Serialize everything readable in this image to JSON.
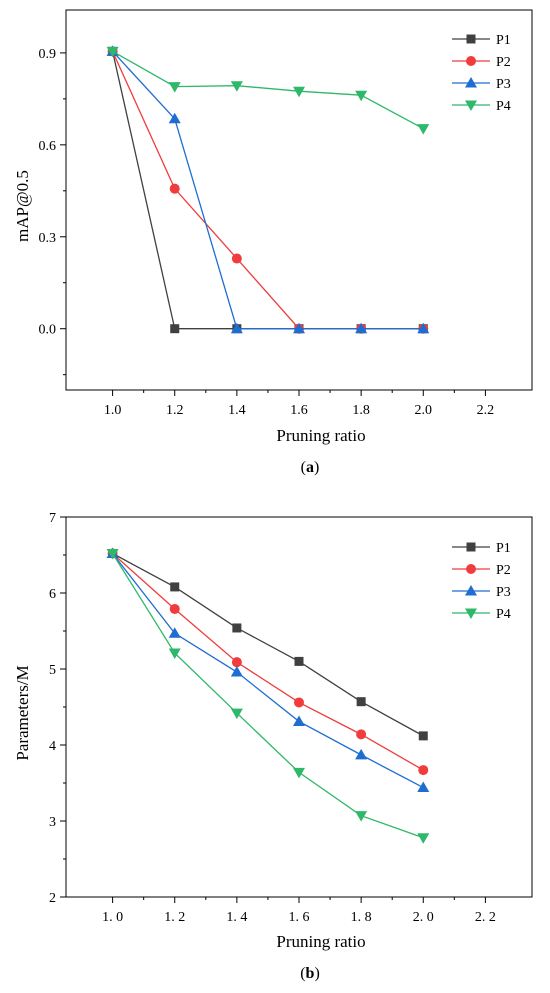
{
  "chart_data": [
    {
      "type": "line",
      "caption": "(a)",
      "caption_letter": "a",
      "xlabel": "Pruning ratio",
      "ylabel": "mAP@0.5",
      "xlim": [
        0.85,
        2.35
      ],
      "ylim": [
        -0.2,
        1.04
      ],
      "xticks": [
        1.0,
        1.2,
        1.4,
        1.6,
        1.8,
        2.0,
        2.2
      ],
      "xtick_labels": [
        "1.0",
        "1.2",
        "1.4",
        "1.6",
        "1.8",
        "2.0",
        "2.2"
      ],
      "yticks": [
        0.0,
        0.3,
        0.6,
        0.9
      ],
      "ytick_labels": [
        "0.0",
        "0.3",
        "0.6",
        "0.9"
      ],
      "legend_position": "top-right",
      "x": [
        1.0,
        1.2,
        1.4,
        1.6,
        1.8,
        2.0
      ],
      "series": [
        {
          "name": "P1",
          "color": "#404040",
          "marker": "square",
          "values": [
            0.905,
            0.0,
            0.0,
            0.0,
            0.0,
            0.0
          ]
        },
        {
          "name": "P2",
          "color": "#f03c3c",
          "marker": "circle",
          "values": [
            0.905,
            0.457,
            0.229,
            0.0,
            0.0,
            0.0
          ]
        },
        {
          "name": "P3",
          "color": "#1e6ed2",
          "marker": "triangle-up",
          "values": [
            0.905,
            0.685,
            0.0,
            0.0,
            0.0,
            0.0
          ]
        },
        {
          "name": "P4",
          "color": "#2eb86a",
          "marker": "triangle-down",
          "values": [
            0.905,
            0.79,
            0.793,
            0.775,
            0.762,
            0.653
          ]
        }
      ]
    },
    {
      "type": "line",
      "caption": "(b)",
      "caption_letter": "b",
      "xlabel": "Pruning ratio",
      "ylabel": "Parameters/M",
      "xlim": [
        0.85,
        2.35
      ],
      "ylim": [
        2,
        7
      ],
      "xticks": [
        1.0,
        1.2,
        1.4,
        1.6,
        1.8,
        2.0,
        2.2
      ],
      "xtick_labels": [
        "1. 0",
        "1. 2",
        "1. 4",
        "1. 6",
        "1. 8",
        "2. 0",
        "2. 2"
      ],
      "yticks": [
        2,
        3,
        4,
        5,
        6,
        7
      ],
      "ytick_labels": [
        "2",
        "3",
        "4",
        "5",
        "6",
        "7"
      ],
      "legend_position": "top-right",
      "x": [
        1.0,
        1.2,
        1.4,
        1.6,
        1.8,
        2.0
      ],
      "series": [
        {
          "name": "P1",
          "color": "#404040",
          "marker": "square",
          "values": [
            6.52,
            6.08,
            5.54,
            5.1,
            4.57,
            4.12
          ]
        },
        {
          "name": "P2",
          "color": "#f03c3c",
          "marker": "circle",
          "values": [
            6.52,
            5.79,
            5.09,
            4.56,
            4.14,
            3.67
          ]
        },
        {
          "name": "P3",
          "color": "#1e6ed2",
          "marker": "triangle-up",
          "values": [
            6.52,
            5.47,
            4.96,
            4.31,
            3.87,
            3.44
          ]
        },
        {
          "name": "P4",
          "color": "#2eb86a",
          "marker": "triangle-down",
          "values": [
            6.52,
            5.21,
            4.42,
            3.64,
            3.07,
            2.78
          ]
        }
      ]
    }
  ]
}
